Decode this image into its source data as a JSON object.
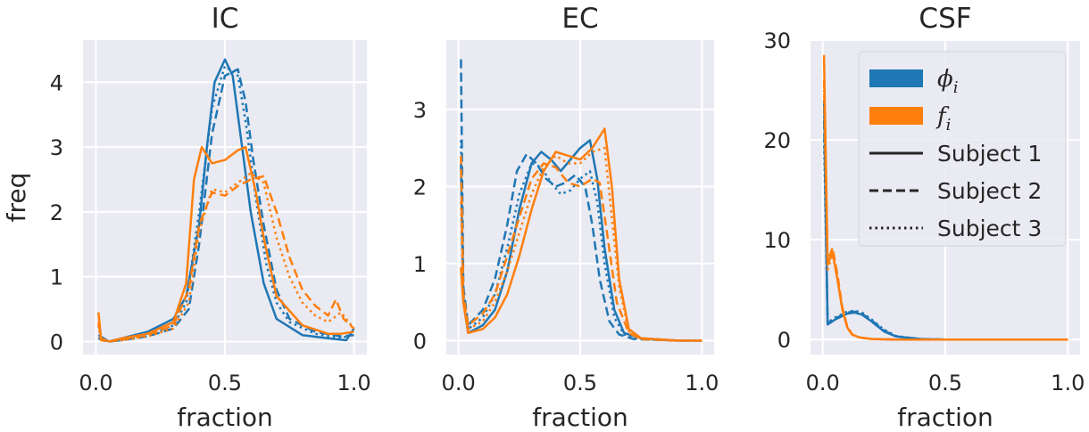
{
  "chart_data": [
    {
      "type": "line",
      "title": "IC",
      "xlabel": "fraction",
      "ylabel": "freq",
      "xlim": [
        -0.05,
        1.05
      ],
      "ylim": [
        -0.2,
        4.65
      ],
      "xticks": [
        0.0,
        0.5,
        1.0
      ],
      "xtick_labels": [
        "0.0",
        "0.5",
        "1.0"
      ],
      "yticks": [
        0,
        1,
        2,
        3,
        4
      ],
      "ytick_labels": [
        "0",
        "1",
        "2",
        "3",
        "4"
      ],
      "grid": true,
      "series": [
        {
          "color": "#1f77b4",
          "dash": "solid",
          "x": [
            0.01,
            0.03,
            0.05,
            0.1,
            0.2,
            0.3,
            0.35,
            0.4,
            0.43,
            0.46,
            0.5,
            0.53,
            0.56,
            0.6,
            0.65,
            0.7,
            0.8,
            0.9,
            0.97,
            1.0
          ],
          "y": [
            0.1,
            0.05,
            0.0,
            0.05,
            0.15,
            0.35,
            0.7,
            1.8,
            3.0,
            4.0,
            4.35,
            4.1,
            3.2,
            2.0,
            0.9,
            0.35,
            0.1,
            0.05,
            0.02,
            0.2
          ]
        },
        {
          "color": "#1f77b4",
          "dash": "dashed",
          "x": [
            0.01,
            0.03,
            0.05,
            0.1,
            0.2,
            0.3,
            0.36,
            0.4,
            0.45,
            0.5,
            0.55,
            0.58,
            0.61,
            0.65,
            0.7,
            0.75,
            0.85,
            0.95,
            1.0
          ],
          "y": [
            0.05,
            0.02,
            0.0,
            0.02,
            0.08,
            0.2,
            0.5,
            1.5,
            3.2,
            4.1,
            4.2,
            3.7,
            2.8,
            1.8,
            0.8,
            0.35,
            0.15,
            0.08,
            0.1
          ]
        },
        {
          "color": "#1f77b4",
          "dash": "dotted",
          "x": [
            0.01,
            0.03,
            0.05,
            0.1,
            0.2,
            0.3,
            0.35,
            0.4,
            0.45,
            0.5,
            0.55,
            0.58,
            0.62,
            0.66,
            0.7,
            0.75,
            0.85,
            0.95,
            1.0
          ],
          "y": [
            0.05,
            0.02,
            0.0,
            0.02,
            0.08,
            0.25,
            0.6,
            2.0,
            3.6,
            4.25,
            4.1,
            3.4,
            2.2,
            1.2,
            0.6,
            0.3,
            0.12,
            0.05,
            0.12
          ]
        },
        {
          "color": "#ff7f0e",
          "dash": "solid",
          "x": [
            0.01,
            0.02,
            0.05,
            0.1,
            0.2,
            0.3,
            0.35,
            0.38,
            0.41,
            0.45,
            0.5,
            0.55,
            0.58,
            0.62,
            0.65,
            0.7,
            0.8,
            0.9,
            0.95,
            1.0
          ],
          "y": [
            0.45,
            0.05,
            0.0,
            0.05,
            0.12,
            0.3,
            0.9,
            2.5,
            3.0,
            2.75,
            2.8,
            2.95,
            3.0,
            2.3,
            1.6,
            0.7,
            0.25,
            0.12,
            0.12,
            0.15
          ]
        },
        {
          "color": "#ff7f0e",
          "dash": "dashed",
          "x": [
            0.01,
            0.02,
            0.05,
            0.1,
            0.2,
            0.3,
            0.36,
            0.4,
            0.45,
            0.5,
            0.55,
            0.6,
            0.65,
            0.7,
            0.75,
            0.8,
            0.85,
            0.9,
            0.93,
            0.96,
            1.0
          ],
          "y": [
            0.3,
            0.02,
            0.0,
            0.03,
            0.1,
            0.25,
            0.8,
            1.8,
            2.3,
            2.25,
            2.4,
            2.5,
            2.55,
            2.0,
            1.3,
            0.8,
            0.55,
            0.4,
            0.65,
            0.35,
            0.2
          ]
        },
        {
          "color": "#ff7f0e",
          "dash": "dotted",
          "x": [
            0.01,
            0.02,
            0.05,
            0.1,
            0.2,
            0.3,
            0.36,
            0.4,
            0.45,
            0.5,
            0.55,
            0.6,
            0.65,
            0.7,
            0.75,
            0.8,
            0.85,
            0.9,
            0.95,
            1.0
          ],
          "y": [
            0.25,
            0.02,
            0.0,
            0.02,
            0.08,
            0.2,
            0.6,
            1.7,
            2.35,
            2.3,
            2.45,
            2.6,
            2.45,
            1.6,
            1.0,
            0.6,
            0.4,
            0.3,
            0.45,
            0.2
          ]
        }
      ]
    },
    {
      "type": "line",
      "title": "EC",
      "xlabel": "fraction",
      "ylabel": "",
      "xlim": [
        -0.05,
        1.05
      ],
      "ylim": [
        -0.18,
        3.9
      ],
      "xticks": [
        0.0,
        0.5,
        1.0
      ],
      "xtick_labels": [
        "0.0",
        "0.5",
        "1.0"
      ],
      "yticks": [
        0,
        1,
        2,
        3
      ],
      "ytick_labels": [
        "0",
        "1",
        "2",
        "3"
      ],
      "grid": true,
      "series": [
        {
          "color": "#1f77b4",
          "dash": "solid",
          "x": [
            0.01,
            0.02,
            0.04,
            0.1,
            0.15,
            0.2,
            0.25,
            0.3,
            0.34,
            0.38,
            0.42,
            0.46,
            0.5,
            0.54,
            0.57,
            0.6,
            0.64,
            0.68,
            0.75,
            0.9,
            1.0
          ],
          "y": [
            2.3,
            0.5,
            0.1,
            0.2,
            0.4,
            0.9,
            1.7,
            2.3,
            2.45,
            2.35,
            2.2,
            2.35,
            2.5,
            2.6,
            2.1,
            1.2,
            0.4,
            0.1,
            0.03,
            0.0,
            0.0
          ]
        },
        {
          "color": "#1f77b4",
          "dash": "dashed",
          "x": [
            0.01,
            0.02,
            0.04,
            0.1,
            0.15,
            0.2,
            0.24,
            0.28,
            0.32,
            0.36,
            0.4,
            0.44,
            0.48,
            0.52,
            0.55,
            0.58,
            0.62,
            0.66,
            0.72,
            0.9,
            1.0
          ],
          "y": [
            3.65,
            0.7,
            0.2,
            0.4,
            0.8,
            1.5,
            2.2,
            2.42,
            2.3,
            2.1,
            2.0,
            2.05,
            2.15,
            2.0,
            1.5,
            0.8,
            0.25,
            0.08,
            0.02,
            0.0,
            0.0
          ]
        },
        {
          "color": "#1f77b4",
          "dash": "dotted",
          "x": [
            0.01,
            0.02,
            0.04,
            0.1,
            0.15,
            0.2,
            0.25,
            0.3,
            0.34,
            0.38,
            0.42,
            0.46,
            0.5,
            0.54,
            0.57,
            0.6,
            0.64,
            0.68,
            0.75,
            0.9,
            1.0
          ],
          "y": [
            2.6,
            0.6,
            0.15,
            0.3,
            0.6,
            1.2,
            1.9,
            2.3,
            2.25,
            2.05,
            1.9,
            1.95,
            2.1,
            2.2,
            1.8,
            1.0,
            0.3,
            0.08,
            0.02,
            0.0,
            0.0
          ]
        },
        {
          "color": "#ff7f0e",
          "dash": "solid",
          "x": [
            0.01,
            0.02,
            0.04,
            0.1,
            0.15,
            0.2,
            0.25,
            0.3,
            0.35,
            0.4,
            0.45,
            0.5,
            0.55,
            0.6,
            0.63,
            0.66,
            0.7,
            0.75,
            0.9,
            1.0
          ],
          "y": [
            0.95,
            0.5,
            0.1,
            0.15,
            0.3,
            0.6,
            1.1,
            1.7,
            2.2,
            2.45,
            2.4,
            2.35,
            2.5,
            2.75,
            2.0,
            0.8,
            0.15,
            0.03,
            0.0,
            0.0
          ]
        },
        {
          "color": "#ff7f0e",
          "dash": "dashed",
          "x": [
            0.01,
            0.02,
            0.04,
            0.1,
            0.15,
            0.2,
            0.25,
            0.3,
            0.35,
            0.4,
            0.45,
            0.5,
            0.55,
            0.58,
            0.61,
            0.65,
            0.7,
            0.75,
            0.9,
            1.0
          ],
          "y": [
            2.4,
            0.6,
            0.2,
            0.35,
            0.6,
            1.1,
            1.6,
            2.1,
            2.3,
            2.25,
            2.05,
            2.0,
            2.1,
            2.05,
            1.4,
            0.5,
            0.1,
            0.02,
            0.0,
            0.0
          ]
        },
        {
          "color": "#ff7f0e",
          "dash": "dotted",
          "x": [
            0.01,
            0.02,
            0.04,
            0.1,
            0.15,
            0.2,
            0.25,
            0.3,
            0.35,
            0.4,
            0.45,
            0.5,
            0.55,
            0.6,
            0.62,
            0.66,
            0.7,
            0.75,
            0.9,
            1.0
          ],
          "y": [
            1.8,
            0.5,
            0.15,
            0.25,
            0.5,
            0.9,
            1.4,
            1.9,
            2.25,
            2.4,
            2.3,
            2.3,
            2.45,
            2.5,
            1.9,
            0.7,
            0.12,
            0.02,
            0.0,
            0.0
          ]
        }
      ]
    },
    {
      "type": "line",
      "title": "CSF",
      "xlabel": "fraction",
      "ylabel": "",
      "xlim": [
        -0.05,
        1.05
      ],
      "ylim": [
        -1.5,
        30.0
      ],
      "xticks": [
        0.0,
        0.5,
        1.0
      ],
      "xtick_labels": [
        "0.0",
        "0.5",
        "1.0"
      ],
      "yticks": [
        0,
        10,
        20,
        30
      ],
      "ytick_labels": [
        "0",
        "10",
        "20",
        "30"
      ],
      "grid": true,
      "series": [
        {
          "color": "#1f77b4",
          "dash": "solid",
          "x": [
            0.005,
            0.02,
            0.05,
            0.1,
            0.13,
            0.16,
            0.2,
            0.25,
            0.3,
            0.4,
            0.5,
            0.7,
            1.0
          ],
          "y": [
            24.0,
            1.5,
            2.0,
            2.6,
            2.7,
            2.5,
            1.8,
            0.8,
            0.3,
            0.05,
            0.0,
            0.0,
            0.0
          ]
        },
        {
          "color": "#1f77b4",
          "dash": "dashed",
          "x": [
            0.005,
            0.02,
            0.05,
            0.1,
            0.13,
            0.16,
            0.2,
            0.25,
            0.3,
            0.4,
            0.5,
            0.7,
            1.0
          ],
          "y": [
            22.0,
            1.6,
            2.1,
            2.7,
            2.8,
            2.6,
            1.9,
            0.9,
            0.3,
            0.05,
            0.0,
            0.0,
            0.0
          ]
        },
        {
          "color": "#1f77b4",
          "dash": "dotted",
          "x": [
            0.005,
            0.02,
            0.05,
            0.1,
            0.13,
            0.16,
            0.2,
            0.25,
            0.3,
            0.4,
            0.5,
            0.7,
            1.0
          ],
          "y": [
            20.0,
            1.7,
            2.2,
            2.8,
            2.9,
            2.7,
            2.0,
            1.0,
            0.35,
            0.05,
            0.0,
            0.0,
            0.0
          ]
        },
        {
          "color": "#ff7f0e",
          "dash": "solid",
          "x": [
            0.005,
            0.02,
            0.04,
            0.06,
            0.08,
            0.1,
            0.12,
            0.15,
            0.2,
            0.3,
            0.5,
            1.0
          ],
          "y": [
            28.5,
            7.5,
            8.8,
            6.0,
            3.0,
            1.2,
            0.5,
            0.2,
            0.05,
            0.0,
            0.0,
            0.0
          ]
        },
        {
          "color": "#ff7f0e",
          "dash": "dashed",
          "x": [
            0.005,
            0.02,
            0.04,
            0.06,
            0.08,
            0.1,
            0.12,
            0.15,
            0.2,
            0.3,
            0.5,
            1.0
          ],
          "y": [
            26.0,
            7.8,
            9.2,
            6.5,
            3.2,
            1.3,
            0.5,
            0.2,
            0.05,
            0.0,
            0.0,
            0.0
          ]
        },
        {
          "color": "#ff7f0e",
          "dash": "dotted",
          "x": [
            0.005,
            0.02,
            0.04,
            0.06,
            0.08,
            0.1,
            0.12,
            0.15,
            0.2,
            0.3,
            0.5,
            1.0
          ],
          "y": [
            25.0,
            7.0,
            8.5,
            6.2,
            3.1,
            1.2,
            0.5,
            0.2,
            0.05,
            0.0,
            0.0,
            0.0
          ]
        }
      ],
      "legend": {
        "placement": "top-right",
        "entries": [
          {
            "kind": "patch",
            "color": "#1f77b4",
            "label_base": "ϕ",
            "label_sub": "i"
          },
          {
            "kind": "patch",
            "color": "#ff7f0e",
            "label_base": "f",
            "label_sub": "i"
          },
          {
            "kind": "line",
            "dash": "solid",
            "label": "Subject 1"
          },
          {
            "kind": "line",
            "dash": "dashed",
            "label": "Subject 2"
          },
          {
            "kind": "line",
            "dash": "dotted",
            "label": "Subject 3"
          }
        ]
      }
    }
  ]
}
